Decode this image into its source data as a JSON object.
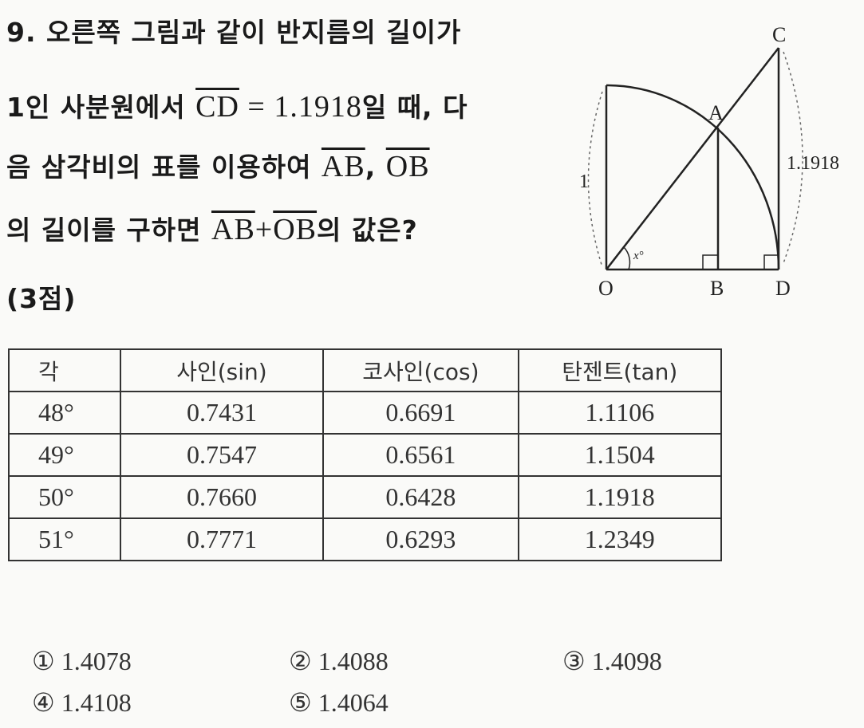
{
  "question": {
    "line1": "9. 오른쪽 그림과 같이 반지름의 길이가",
    "line2_a": "1인 사분원에서 ",
    "line2_seg": "CD",
    "line2_eq": " = 1.1918",
    "line2_b": "일 때, 다",
    "line3_a": "음 삼각비의 표를 이용하여 ",
    "line3_seg1": "AB",
    "line3_sep": ", ",
    "line3_seg2": "OB",
    "line4_a": "의 길이를 구하면 ",
    "line4_seg1": "AB",
    "line4_plus": "+",
    "line4_seg2": "OB",
    "line4_b": "의 값은?",
    "points": "(3점)"
  },
  "figure": {
    "labels": {
      "O": "O",
      "A": "A",
      "B": "B",
      "C": "C",
      "D": "D"
    },
    "radius_label": "1",
    "cd_label": "1.1918",
    "angle_label": "x°"
  },
  "table": {
    "headers": [
      "각",
      "사인(sin)",
      "코사인(cos)",
      "탄젠트(tan)"
    ],
    "rows": [
      [
        "48°",
        "0.7431",
        "0.6691",
        "1.1106"
      ],
      [
        "49°",
        "0.7547",
        "0.6561",
        "1.1504"
      ],
      [
        "50°",
        "0.7660",
        "0.6428",
        "1.1918"
      ],
      [
        "51°",
        "0.7771",
        "0.6293",
        "1.2349"
      ]
    ]
  },
  "choices": [
    {
      "num": "①",
      "value": "1.4078"
    },
    {
      "num": "②",
      "value": "1.4088"
    },
    {
      "num": "③",
      "value": "1.4098"
    },
    {
      "num": "④",
      "value": "1.4108"
    },
    {
      "num": "⑤",
      "value": "1.4064"
    }
  ]
}
